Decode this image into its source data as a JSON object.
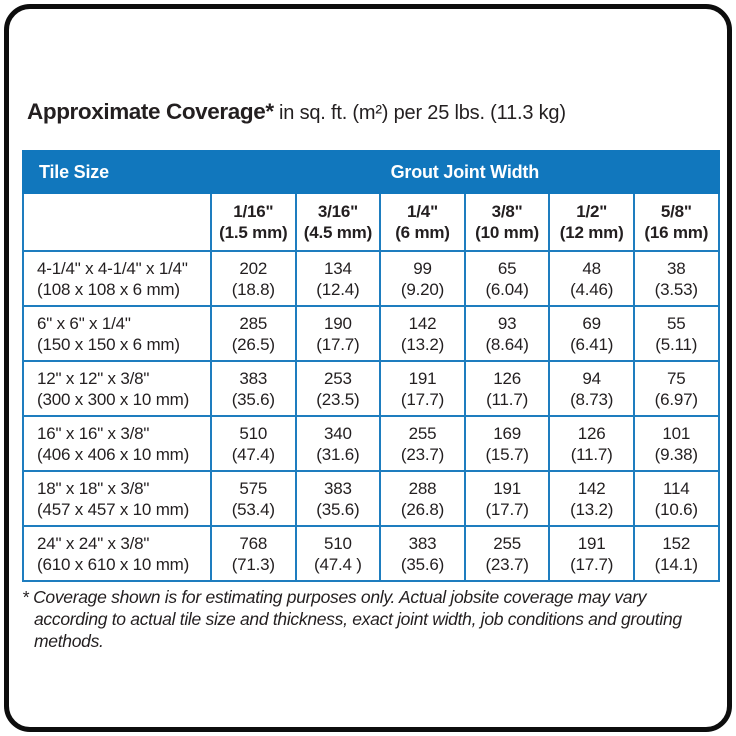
{
  "title": {
    "main": "Approximate Coverage*",
    "subtitle": " in sq. ft. (m²) per 25 lbs. (11.3 kg)"
  },
  "table": {
    "tile_size_header": "Tile Size",
    "grout_header": "Grout Joint Width",
    "columns": [
      {
        "size": "1/16\"",
        "metric": "(1.5 mm)"
      },
      {
        "size": "3/16\"",
        "metric": "(4.5 mm)"
      },
      {
        "size": "1/4\"",
        "metric": "(6 mm)"
      },
      {
        "size": "3/8\"",
        "metric": "(10 mm)"
      },
      {
        "size": "1/2\"",
        "metric": "(12 mm)"
      },
      {
        "size": "5/8\"",
        "metric": "(16 mm)"
      }
    ],
    "rows": [
      {
        "tile": "4-1/4\" x 4-1/4\" x 1/4\"",
        "tile_metric": "(108 x 108 x 6 mm)",
        "values": [
          "202",
          "134",
          "99",
          "65",
          "48",
          "38"
        ],
        "metrics": [
          "(18.8)",
          "(12.4)",
          "(9.20)",
          "(6.04)",
          "(4.46)",
          "(3.53)"
        ]
      },
      {
        "tile": "6\" x 6\" x 1/4\"",
        "tile_metric": "(150 x 150 x 6 mm)",
        "values": [
          "285",
          "190",
          "142",
          "93",
          "69",
          "55"
        ],
        "metrics": [
          "(26.5)",
          "(17.7)",
          "(13.2)",
          "(8.64)",
          "(6.41)",
          "(5.11)"
        ]
      },
      {
        "tile": "12\" x 12\" x 3/8\"",
        "tile_metric": "(300 x 300 x 10 mm)",
        "values": [
          "383",
          "253",
          "191",
          "126",
          "94",
          "75"
        ],
        "metrics": [
          "(35.6)",
          "(23.5)",
          "(17.7)",
          "(11.7)",
          "(8.73)",
          "(6.97)"
        ]
      },
      {
        "tile": "16\" x 16\" x 3/8\"",
        "tile_metric": "(406 x 406 x 10 mm)",
        "values": [
          "510",
          "340",
          "255",
          "169",
          "126",
          "101"
        ],
        "metrics": [
          "(47.4)",
          "(31.6)",
          "(23.7)",
          "(15.7)",
          "(11.7)",
          "(9.38)"
        ]
      },
      {
        "tile": "18\" x 18\" x 3/8\"",
        "tile_metric": "(457 x 457 x 10 mm)",
        "values": [
          "575",
          "383",
          "288",
          "191",
          "142",
          "114"
        ],
        "metrics": [
          "(53.4)",
          "(35.6)",
          "(26.8)",
          "(17.7)",
          "(13.2)",
          "(10.6)"
        ]
      },
      {
        "tile": "24\" x 24\" x 3/8\"",
        "tile_metric": "(610 x 610 x 10 mm)",
        "values": [
          "768",
          "510",
          "383",
          "255",
          "191",
          "152"
        ],
        "metrics": [
          "(71.3)",
          "(47.4 )",
          "(35.6)",
          "(23.7)",
          "(17.7)",
          "(14.1)"
        ]
      }
    ]
  },
  "footnote": "* Coverage shown is for estimating purposes only. Actual jobsite coverage may vary according to actual tile size and thickness, exact joint width, job conditions and grouting methods."
}
